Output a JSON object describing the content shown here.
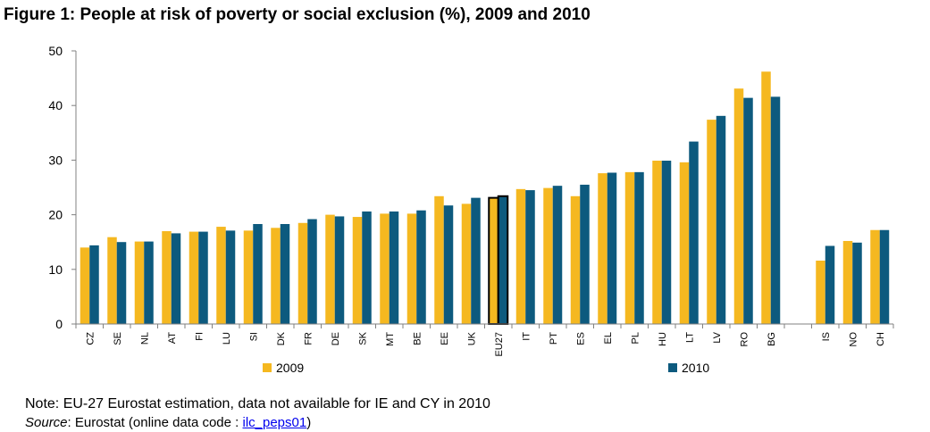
{
  "figure": {
    "title": "Figure 1: People at risk of poverty or social exclusion (%), 2009 and 2010",
    "note": "Note: EU-27 Eurostat estimation, data not available for IE and CY in 2010",
    "source_label": "Source",
    "source_text": ": Eurostat (online data code : ",
    "source_code": "ilc_peps01",
    "source_close": ")"
  },
  "colors": {
    "series_2009": "#f5b820",
    "series_2010": "#0d5a7e",
    "axis": "#808080",
    "highlight_border": "#000000"
  },
  "chart_data": {
    "type": "bar",
    "title": "Figure 1: People at risk of poverty or social exclusion (%), 2009 and 2010",
    "xlabel": "",
    "ylabel": "",
    "ylim": [
      0,
      50
    ],
    "yticks": [
      0,
      10,
      20,
      30,
      40,
      50
    ],
    "grid": false,
    "legend": "bottom",
    "categories": [
      "CZ",
      "SE",
      "NL",
      "AT",
      "FI",
      "LU",
      "SI",
      "DK",
      "FR",
      "DE",
      "SK",
      "MT",
      "BE",
      "EE",
      "UK",
      "EU27",
      "IT",
      "PT",
      "ES",
      "EL",
      "PL",
      "HU",
      "LT",
      "LV",
      "RO",
      "BG",
      "",
      "IS",
      "NO",
      "CH"
    ],
    "highlight": "EU27",
    "series": [
      {
        "name": "2009",
        "values": [
          14.0,
          15.9,
          15.1,
          17.0,
          16.9,
          17.8,
          17.1,
          17.6,
          18.5,
          20.0,
          19.6,
          20.2,
          20.2,
          23.4,
          22.0,
          23.1,
          24.7,
          24.9,
          23.4,
          27.6,
          27.8,
          29.9,
          29.6,
          37.4,
          43.1,
          46.2,
          null,
          11.6,
          15.2,
          17.2
        ]
      },
      {
        "name": "2010",
        "values": [
          14.4,
          15.0,
          15.1,
          16.6,
          16.9,
          17.1,
          18.3,
          18.3,
          19.2,
          19.7,
          20.6,
          20.6,
          20.8,
          21.7,
          23.1,
          23.4,
          24.5,
          25.3,
          25.5,
          27.7,
          27.8,
          29.9,
          33.4,
          38.1,
          41.4,
          41.6,
          null,
          14.3,
          14.9,
          17.2
        ]
      }
    ]
  }
}
